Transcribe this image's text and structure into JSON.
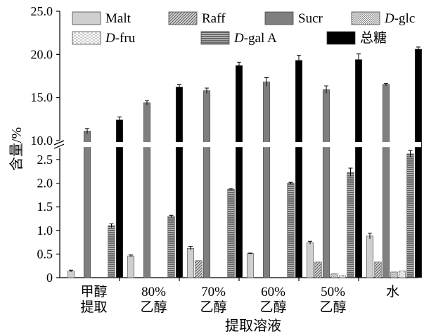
{
  "chart_data": {
    "type": "bar",
    "xlabel": "提取溶液",
    "ylabel": "含量/%",
    "axis_break": {
      "lower_range": [
        0,
        2.75
      ],
      "upper_range": [
        10.0,
        25.0
      ]
    },
    "y_ticks_lower": [
      "0",
      "0.5",
      "1.0",
      "1.5",
      "2.0",
      "2.5"
    ],
    "y_ticks_upper": [
      "10.0",
      "15.0",
      "20.0",
      "25.0"
    ],
    "categories": [
      {
        "line1": "甲醇",
        "line2": "提取"
      },
      {
        "line1": "80%",
        "line2": "乙醇"
      },
      {
        "line1": "70%",
        "line2": "乙醇"
      },
      {
        "line1": "60%",
        "line2": "乙醇"
      },
      {
        "line1": "50%",
        "line2": "乙醇"
      },
      {
        "line1": "水",
        "line2": ""
      }
    ],
    "legend_position": "top",
    "series": [
      {
        "name": "Malt",
        "italic_prefix": "",
        "suffix": "Malt",
        "fill": "#cfcfcf",
        "pattern": "solid",
        "values": [
          0.14,
          0.46,
          0.62,
          0.51,
          0.74,
          0.88
        ],
        "errors": [
          0.02,
          0.02,
          0.04,
          0.01,
          0.03,
          0.06
        ]
      },
      {
        "name": "Raff",
        "italic_prefix": "",
        "suffix": "Raff",
        "fill": "#a8a8a8",
        "pattern": "diagonal",
        "values": [
          0,
          0,
          0.36,
          0,
          0.33,
          0.33
        ],
        "errors": [
          0,
          0,
          0,
          0,
          0,
          0
        ]
      },
      {
        "name": "Sucr",
        "italic_prefix": "",
        "suffix": "Sucr",
        "fill": "#7f7f7f",
        "pattern": "solid",
        "values": [
          11.1,
          14.4,
          15.8,
          16.8,
          15.9,
          16.5
        ],
        "errors": [
          0.3,
          0.25,
          0.3,
          0.5,
          0.45,
          0.15
        ]
      },
      {
        "name": "D-glc",
        "italic_prefix": "D",
        "suffix": "-glc",
        "fill": "#d8d8d8",
        "pattern": "dots",
        "values": [
          0,
          0,
          0,
          0,
          0.08,
          0.12
        ],
        "errors": [
          0,
          0,
          0,
          0,
          0,
          0
        ]
      },
      {
        "name": "D-fru",
        "italic_prefix": "D",
        "suffix": "-fru",
        "fill": "#e2e2e2",
        "pattern": "hdash",
        "values": [
          0,
          0,
          0,
          0,
          0.04,
          0.14
        ],
        "errors": [
          0,
          0,
          0,
          0,
          0,
          0
        ]
      },
      {
        "name": "D-gal A",
        "italic_prefix": "D",
        "suffix": "-gal A",
        "fill": "#8e8e8e",
        "pattern": "hstripe",
        "values": [
          1.1,
          1.3,
          1.87,
          2.0,
          2.23,
          2.62
        ],
        "errors": [
          0.04,
          0.02,
          0.01,
          0.02,
          0.09,
          0.07
        ]
      },
      {
        "name": "总糖",
        "italic_prefix": "",
        "suffix": "总糖",
        "fill": "#000000",
        "pattern": "solid",
        "values": [
          12.4,
          16.2,
          18.7,
          19.3,
          19.4,
          20.6
        ],
        "errors": [
          0.35,
          0.3,
          0.4,
          0.6,
          0.65,
          0.25
        ]
      }
    ]
  }
}
